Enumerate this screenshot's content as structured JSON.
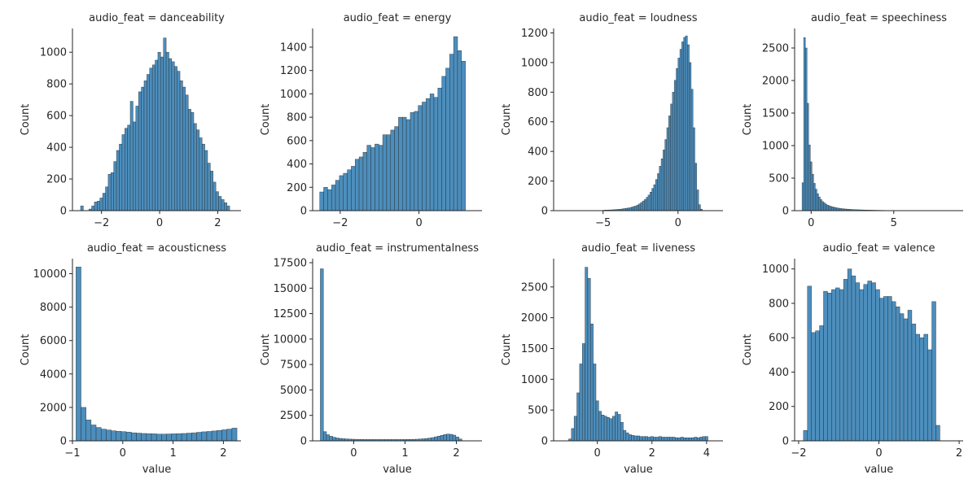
{
  "figure": {
    "bar_color": "#4c8ebd",
    "edge_color": "#262626"
  },
  "chart_data": [
    {
      "type": "bar",
      "title": "audio_feat = danceability",
      "xlabel": "",
      "ylabel": "Count",
      "xlim": [
        -3.0,
        2.8
      ],
      "ylim": [
        0,
        1150
      ],
      "xticks": [
        -2,
        0,
        2
      ],
      "xtick_labels": [
        "−2",
        "0",
        "2"
      ],
      "yticks": [
        0,
        200,
        400,
        600,
        800,
        1000
      ],
      "ytick_labels": [
        "0",
        "200",
        "400",
        "600",
        "800",
        "1000"
      ],
      "bin_start": -2.72,
      "bin_width": 0.095,
      "values": [
        30,
        0,
        0,
        10,
        30,
        55,
        60,
        80,
        110,
        150,
        230,
        240,
        310,
        380,
        420,
        480,
        520,
        540,
        690,
        560,
        660,
        750,
        780,
        820,
        860,
        900,
        920,
        950,
        1000,
        970,
        1090,
        1000,
        960,
        940,
        910,
        880,
        820,
        780,
        730,
        640,
        620,
        550,
        510,
        460,
        420,
        380,
        300,
        250,
        180,
        120,
        90,
        70,
        50,
        30
      ]
    },
    {
      "type": "bar",
      "title": "audio_feat = energy",
      "xlabel": "",
      "ylabel": "Count",
      "xlim": [
        -2.7,
        1.6
      ],
      "ylim": [
        0,
        1560
      ],
      "xticks": [
        -2,
        0
      ],
      "xtick_labels": [
        "−2",
        "0"
      ],
      "yticks": [
        0,
        200,
        400,
        600,
        800,
        1000,
        1200,
        1400
      ],
      "ytick_labels": [
        "0",
        "200",
        "400",
        "600",
        "800",
        "1000",
        "1200",
        "1400"
      ],
      "bin_start": -2.52,
      "bin_width": 0.1,
      "values": [
        160,
        200,
        180,
        220,
        260,
        300,
        320,
        350,
        380,
        440,
        460,
        500,
        560,
        540,
        570,
        560,
        650,
        650,
        690,
        720,
        800,
        800,
        780,
        840,
        850,
        900,
        930,
        960,
        1000,
        970,
        1050,
        1150,
        1220,
        1340,
        1490,
        1370,
        1280
      ]
    },
    {
      "type": "bar",
      "title": "audio_feat = loudness",
      "xlabel": "",
      "ylabel": "Count",
      "xlim": [
        -8.3,
        3.0
      ],
      "ylim": [
        0,
        1230
      ],
      "xticks": [
        -5,
        0
      ],
      "xtick_labels": [
        "−5",
        "0"
      ],
      "yticks": [
        0,
        200,
        400,
        600,
        800,
        1000,
        1200
      ],
      "ytick_labels": [
        "0",
        "200",
        "400",
        "600",
        "800",
        "1000",
        "1200"
      ],
      "bin_start": -5.0,
      "bin_width": 0.125,
      "values": [
        3,
        4,
        4,
        5,
        5,
        6,
        7,
        8,
        9,
        10,
        12,
        14,
        16,
        18,
        20,
        24,
        28,
        32,
        38,
        45,
        55,
        65,
        75,
        90,
        105,
        125,
        150,
        175,
        210,
        250,
        300,
        350,
        410,
        480,
        560,
        640,
        720,
        800,
        880,
        960,
        1030,
        1090,
        1140,
        1170,
        1180,
        1120,
        1000,
        820,
        560,
        320,
        140,
        40,
        10
      ]
    },
    {
      "type": "bar",
      "title": "audio_feat = speechiness",
      "xlabel": "",
      "ylabel": "Count",
      "xlim": [
        -1.0,
        9.2
      ],
      "ylim": [
        0,
        2800
      ],
      "xticks": [
        0,
        5
      ],
      "xtick_labels": [
        "0",
        "5"
      ],
      "yticks": [
        0,
        500,
        1000,
        1500,
        2000,
        2500
      ],
      "ytick_labels": [
        "0",
        "500",
        "1000",
        "1500",
        "2000",
        "2500"
      ],
      "bin_start": -0.55,
      "bin_width": 0.1,
      "values": [
        430,
        2660,
        2500,
        1650,
        1010,
        750,
        560,
        420,
        330,
        260,
        210,
        170,
        140,
        120,
        100,
        85,
        75,
        65,
        58,
        52,
        46,
        41,
        37,
        33,
        30,
        27,
        25,
        23,
        21,
        19,
        17,
        16,
        15,
        14,
        13,
        12,
        11,
        10,
        9,
        9,
        8,
        8,
        7,
        7,
        6,
        6,
        5,
        5,
        4,
        4,
        3,
        3,
        3,
        2,
        2
      ]
    },
    {
      "type": "bar",
      "title": "audio_feat = acousticness",
      "xlabel": "value",
      "ylabel": "Count",
      "xlim": [
        -1.0,
        2.35
      ],
      "ylim": [
        0,
        10900
      ],
      "xticks": [
        -1,
        0,
        1,
        2
      ],
      "xtick_labels": [
        "−1",
        "0",
        "1",
        "2"
      ],
      "yticks": [
        0,
        2000,
        4000,
        6000,
        8000,
        10000
      ],
      "ytick_labels": [
        "0",
        "2000",
        "4000",
        "6000",
        "8000",
        "10000"
      ],
      "bin_start": -0.93,
      "bin_width": 0.1,
      "values": [
        10400,
        2000,
        1250,
        950,
        800,
        700,
        650,
        600,
        570,
        550,
        520,
        480,
        460,
        440,
        430,
        420,
        400,
        400,
        410,
        420,
        430,
        440,
        460,
        480,
        510,
        540,
        560,
        590,
        620,
        660,
        700,
        760
      ]
    },
    {
      "type": "bar",
      "title": "audio_feat = instrumentalness",
      "xlabel": "value",
      "ylabel": "Count",
      "xlim": [
        -0.8,
        2.5
      ],
      "ylim": [
        0,
        17900
      ],
      "xticks": [
        0,
        1,
        2
      ],
      "xtick_labels": [
        "0",
        "1",
        "2"
      ],
      "yticks": [
        0,
        2500,
        5000,
        7500,
        10000,
        12500,
        15000,
        17500
      ],
      "ytick_labels": [
        "0",
        "2500",
        "5000",
        "7500",
        "10000",
        "12500",
        "15000",
        "17500"
      ],
      "bin_start": -0.65,
      "bin_width": 0.06,
      "values": [
        16900,
        900,
        600,
        450,
        350,
        280,
        240,
        210,
        190,
        170,
        160,
        150,
        140,
        140,
        130,
        130,
        130,
        130,
        130,
        130,
        130,
        130,
        130,
        130,
        130,
        130,
        130,
        130,
        140,
        140,
        150,
        160,
        180,
        200,
        230,
        270,
        320,
        390,
        460,
        540,
        620,
        660,
        640,
        560,
        380,
        180
      ]
    },
    {
      "type": "bar",
      "title": "audio_feat = liveness",
      "xlabel": "value",
      "ylabel": "Count",
      "xlim": [
        -1.6,
        4.6
      ],
      "ylim": [
        0,
        2960
      ],
      "xticks": [
        0,
        2,
        4
      ],
      "xtick_labels": [
        "0",
        "2",
        "4"
      ],
      "yticks": [
        0,
        500,
        1000,
        1500,
        2000,
        2500
      ],
      "ytick_labels": [
        "0",
        "500",
        "1000",
        "1500",
        "2000",
        "2500"
      ],
      "bin_start": -1.05,
      "bin_width": 0.1,
      "values": [
        30,
        200,
        400,
        780,
        1250,
        1580,
        2820,
        2640,
        1900,
        1250,
        650,
        480,
        420,
        400,
        380,
        360,
        400,
        470,
        430,
        300,
        170,
        130,
        100,
        90,
        80,
        80,
        70,
        70,
        70,
        60,
        70,
        60,
        60,
        70,
        60,
        60,
        60,
        60,
        60,
        50,
        50,
        60,
        50,
        50,
        50,
        50,
        60,
        50,
        60,
        70,
        70
      ]
    },
    {
      "type": "bar",
      "title": "audio_feat = valence",
      "xlabel": "value",
      "ylabel": "Count",
      "xlim": [
        -2.1,
        2.1
      ],
      "ylim": [
        0,
        1060
      ],
      "xticks": [
        -2,
        0,
        2
      ],
      "xtick_labels": [
        "−2",
        "0",
        "2"
      ],
      "yticks": [
        0,
        200,
        400,
        600,
        800,
        1000
      ],
      "ytick_labels": [
        "0",
        "200",
        "400",
        "600",
        "800",
        "1000"
      ],
      "bin_start": -1.88,
      "bin_width": 0.1,
      "values": [
        60,
        900,
        630,
        640,
        670,
        870,
        860,
        880,
        890,
        880,
        940,
        1000,
        960,
        920,
        880,
        910,
        930,
        920,
        880,
        830,
        840,
        840,
        810,
        780,
        740,
        710,
        760,
        680,
        620,
        600,
        620,
        530,
        810,
        90
      ]
    }
  ]
}
